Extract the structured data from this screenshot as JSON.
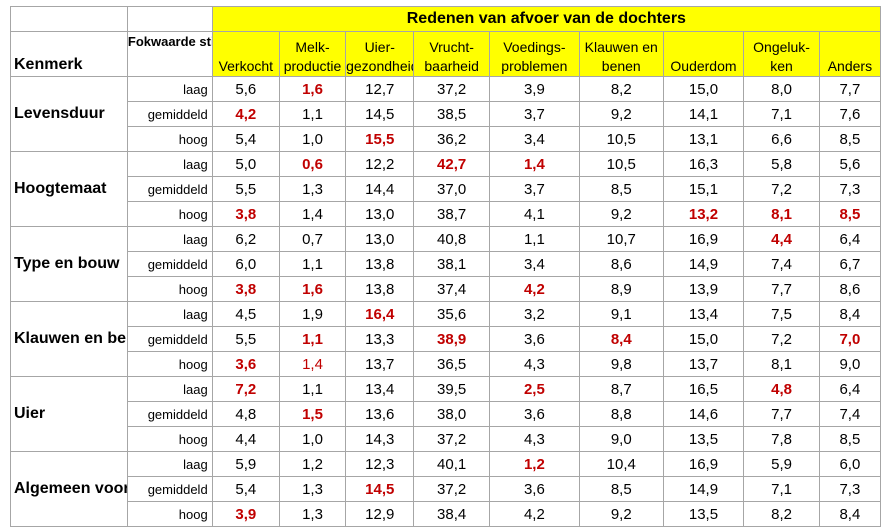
{
  "title": "Redenen van afvoer van de dochters",
  "kenmerk_label": "Kenmerk",
  "stier_label": "Fokwaarde stier",
  "columns": [
    {
      "line1": "",
      "line2": "Verkocht"
    },
    {
      "line1": "Melk-",
      "line2": "productie"
    },
    {
      "line1": "Uier-",
      "line2": "gezondheid"
    },
    {
      "line1": "Vrucht-",
      "line2": "baarheid"
    },
    {
      "line1": "Voedings-",
      "line2": "problemen"
    },
    {
      "line1": "Klauwen en",
      "line2": "benen"
    },
    {
      "line1": "",
      "line2": "Ouderdom"
    },
    {
      "line1": "Ongeluk-",
      "line2": "ken"
    },
    {
      "line1": "",
      "line2": "Anders"
    }
  ],
  "groups": [
    {
      "name": "Levensduur",
      "rows": [
        {
          "level": "laag",
          "values": [
            "5,6",
            "1,6",
            "12,7",
            "37,2",
            "3,9",
            "8,2",
            "15,0",
            "8,0",
            "7,7"
          ],
          "emphasis": [
            "",
            "rb",
            "",
            "",
            "",
            "",
            "",
            "",
            ""
          ]
        },
        {
          "level": "gemiddeld",
          "values": [
            "4,2",
            "1,1",
            "14,5",
            "38,5",
            "3,7",
            "9,2",
            "14,1",
            "7,1",
            "7,6"
          ],
          "emphasis": [
            "rb",
            "",
            "",
            "",
            "",
            "",
            "",
            "",
            ""
          ]
        },
        {
          "level": "hoog",
          "values": [
            "5,4",
            "1,0",
            "15,5",
            "36,2",
            "3,4",
            "10,5",
            "13,1",
            "6,6",
            "8,5"
          ],
          "emphasis": [
            "",
            "",
            "rb",
            "",
            "",
            "",
            "",
            "",
            ""
          ]
        }
      ]
    },
    {
      "name": "Hoogtemaat",
      "rows": [
        {
          "level": "laag",
          "values": [
            "5,0",
            "0,6",
            "12,2",
            "42,7",
            "1,4",
            "10,5",
            "16,3",
            "5,8",
            "5,6"
          ],
          "emphasis": [
            "",
            "rb",
            "",
            "rb",
            "rb",
            "",
            "",
            "",
            ""
          ]
        },
        {
          "level": "gemiddeld",
          "values": [
            "5,5",
            "1,3",
            "14,4",
            "37,0",
            "3,7",
            "8,5",
            "15,1",
            "7,2",
            "7,3"
          ],
          "emphasis": [
            "",
            "",
            "",
            "",
            "",
            "",
            "",
            "",
            ""
          ]
        },
        {
          "level": "hoog",
          "values": [
            "3,8",
            "1,4",
            "13,0",
            "38,7",
            "4,1",
            "9,2",
            "13,2",
            "8,1",
            "8,5"
          ],
          "emphasis": [
            "rb",
            "",
            "",
            "",
            "",
            "",
            "rb",
            "rb",
            "rb"
          ]
        }
      ]
    },
    {
      "name": "Type en bouw",
      "rows": [
        {
          "level": "laag",
          "values": [
            "6,2",
            "0,7",
            "13,0",
            "40,8",
            "1,1",
            "10,7",
            "16,9",
            "4,4",
            "6,4"
          ],
          "emphasis": [
            "",
            "",
            "",
            "",
            "",
            "",
            "",
            "rb",
            ""
          ]
        },
        {
          "level": "gemiddeld",
          "values": [
            "6,0",
            "1,1",
            "13,8",
            "38,1",
            "3,4",
            "8,6",
            "14,9",
            "7,4",
            "6,7"
          ],
          "emphasis": [
            "",
            "",
            "",
            "",
            "",
            "",
            "",
            "",
            ""
          ]
        },
        {
          "level": "hoog",
          "values": [
            "3,8",
            "1,6",
            "13,8",
            "37,4",
            "4,2",
            "8,9",
            "13,9",
            "7,7",
            "8,6"
          ],
          "emphasis": [
            "rb",
            "rb",
            "",
            "",
            "rb",
            "",
            "",
            "",
            ""
          ]
        }
      ]
    },
    {
      "name": "Klauwen en benen",
      "rows": [
        {
          "level": "laag",
          "values": [
            "4,5",
            "1,9",
            "16,4",
            "35,6",
            "3,2",
            "9,1",
            "13,4",
            "7,5",
            "8,4"
          ],
          "emphasis": [
            "",
            "",
            "rb",
            "",
            "",
            "",
            "",
            "",
            ""
          ]
        },
        {
          "level": "gemiddeld",
          "values": [
            "5,5",
            "1,1",
            "13,3",
            "38,9",
            "3,6",
            "8,4",
            "15,0",
            "7,2",
            "7,0"
          ],
          "emphasis": [
            "",
            "rb",
            "",
            "rb",
            "",
            "rb",
            "",
            "",
            "rb"
          ]
        },
        {
          "level": "hoog",
          "values": [
            "3,6",
            "1,4",
            "13,7",
            "36,5",
            "4,3",
            "9,8",
            "13,7",
            "8,1",
            "9,0"
          ],
          "emphasis": [
            "rb",
            "r",
            "",
            "",
            "",
            "",
            "",
            "",
            ""
          ]
        }
      ]
    },
    {
      "name": "Uier",
      "rows": [
        {
          "level": "laag",
          "values": [
            "7,2",
            "1,1",
            "13,4",
            "39,5",
            "2,5",
            "8,7",
            "16,5",
            "4,8",
            "6,4"
          ],
          "emphasis": [
            "rb",
            "",
            "",
            "",
            "rb",
            "",
            "",
            "rb",
            ""
          ]
        },
        {
          "level": "gemiddeld",
          "values": [
            "4,8",
            "1,5",
            "13,6",
            "38,0",
            "3,6",
            "8,8",
            "14,6",
            "7,7",
            "7,4"
          ],
          "emphasis": [
            "",
            "rb",
            "",
            "",
            "",
            "",
            "",
            "",
            ""
          ]
        },
        {
          "level": "hoog",
          "values": [
            "4,4",
            "1,0",
            "14,3",
            "37,2",
            "4,3",
            "9,0",
            "13,5",
            "7,8",
            "8,5"
          ],
          "emphasis": [
            "",
            "",
            "",
            "",
            "",
            "",
            "",
            "",
            ""
          ]
        }
      ]
    },
    {
      "name": "Algemeen voorkomen",
      "rows": [
        {
          "level": "laag",
          "values": [
            "5,9",
            "1,2",
            "12,3",
            "40,1",
            "1,2",
            "10,4",
            "16,9",
            "5,9",
            "6,0"
          ],
          "emphasis": [
            "",
            "",
            "",
            "",
            "rb",
            "",
            "",
            "",
            ""
          ]
        },
        {
          "level": "gemiddeld",
          "values": [
            "5,4",
            "1,3",
            "14,5",
            "37,2",
            "3,6",
            "8,5",
            "14,9",
            "7,1",
            "7,3"
          ],
          "emphasis": [
            "",
            "",
            "rb",
            "",
            "",
            "",
            "",
            "",
            ""
          ]
        },
        {
          "level": "hoog",
          "values": [
            "3,9",
            "1,3",
            "12,9",
            "38,4",
            "4,2",
            "9,2",
            "13,5",
            "8,2",
            "8,4"
          ],
          "emphasis": [
            "rb",
            "",
            "",
            "",
            "",
            "",
            "",
            "",
            ""
          ]
        }
      ]
    }
  ],
  "colors": {
    "header_bg": "#ffff00",
    "highlight": "#c00000",
    "grid": "#a6a6a6"
  }
}
